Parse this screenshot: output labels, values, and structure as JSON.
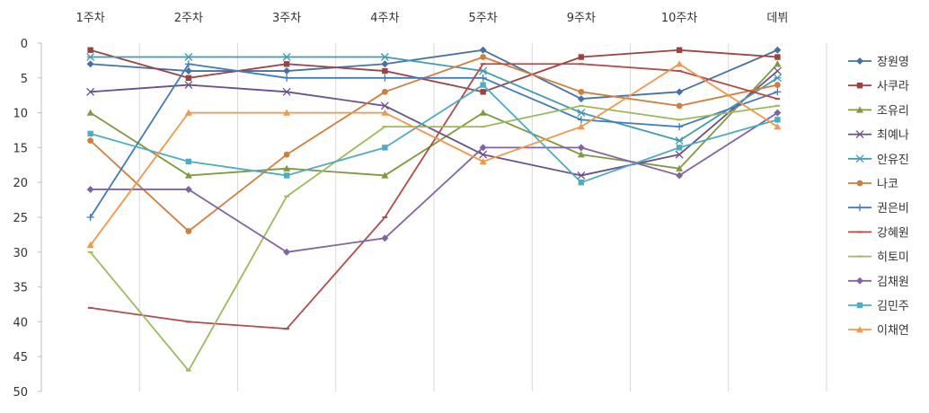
{
  "chart_data": {
    "type": "line",
    "categories": [
      "1주차",
      "2주차",
      "3주차",
      "4주차",
      "5주차",
      "9주차",
      "10주차",
      "데뷔"
    ],
    "ylim": [
      0,
      50
    ],
    "y_ticks": [
      0,
      5,
      10,
      15,
      20,
      25,
      30,
      35,
      40,
      45,
      50
    ],
    "y_reversed": true,
    "grid": "vertical",
    "legend_position": "right",
    "series": [
      {
        "name": "장원영",
        "color": "#4472A8",
        "marker": "diamond",
        "values": [
          3,
          4,
          4,
          3,
          1,
          8,
          7,
          1
        ]
      },
      {
        "name": "사쿠라",
        "color": "#A04040",
        "marker": "square",
        "values": [
          1,
          5,
          3,
          4,
          7,
          2,
          1,
          2
        ]
      },
      {
        "name": "조유리",
        "color": "#7F9A3C",
        "marker": "triangle",
        "values": [
          10,
          19,
          18,
          19,
          10,
          16,
          18,
          3
        ]
      },
      {
        "name": "최예나",
        "color": "#6A4F8C",
        "marker": "x",
        "values": [
          7,
          6,
          7,
          9,
          16,
          19,
          16,
          4
        ]
      },
      {
        "name": "안유진",
        "color": "#3E9CB5",
        "marker": "star",
        "values": [
          2,
          2,
          2,
          2,
          4,
          10,
          14,
          5
        ]
      },
      {
        "name": "나코",
        "color": "#D27E3A",
        "marker": "circle",
        "values": [
          14,
          27,
          16,
          7,
          2,
          7,
          9,
          6
        ]
      },
      {
        "name": "권은비",
        "color": "#3F7BC0",
        "marker": "plus",
        "values": [
          25,
          3,
          5,
          5,
          5,
          11,
          12,
          7
        ]
      },
      {
        "name": "강혜원",
        "color": "#B64A47",
        "marker": "dash",
        "values": [
          38,
          40,
          41,
          25,
          3,
          3,
          4,
          8
        ]
      },
      {
        "name": "히토미",
        "color": "#9BBB59",
        "marker": "dash",
        "values": [
          30,
          47,
          22,
          12,
          12,
          9,
          11,
          9
        ]
      },
      {
        "name": "김채원",
        "color": "#8064A2",
        "marker": "diamond",
        "values": [
          21,
          21,
          30,
          28,
          15,
          15,
          19,
          10
        ]
      },
      {
        "name": "김민주",
        "color": "#4BACC6",
        "marker": "square",
        "values": [
          13,
          17,
          19,
          15,
          6,
          20,
          15,
          11
        ]
      },
      {
        "name": "이채연",
        "color": "#F79646",
        "marker": "triangle",
        "values": [
          29,
          10,
          10,
          10,
          17,
          12,
          3,
          12
        ]
      }
    ]
  }
}
